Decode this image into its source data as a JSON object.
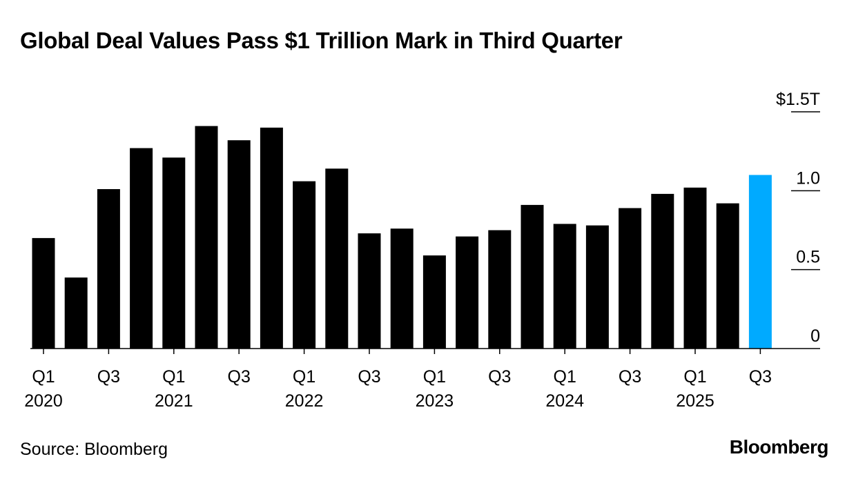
{
  "title": "Global Deal Values Pass $1 Trillion Mark in Third Quarter",
  "source": "Source: Bloomberg",
  "brand": "Bloomberg",
  "colors": {
    "bar": "#000000",
    "highlight": "#00aaff",
    "axis": "#000000"
  },
  "chart_data": {
    "type": "bar",
    "title": "Global Deal Values Pass $1 Trillion Mark in Third Quarter",
    "xlabel": "",
    "ylabel": "",
    "ylim": [
      0,
      1.5
    ],
    "y_ticks": [
      {
        "value": 0,
        "label": "0"
      },
      {
        "value": 0.5,
        "label": "0.5"
      },
      {
        "value": 1.0,
        "label": "1.0"
      },
      {
        "value": 1.5,
        "label": "$1.5T"
      }
    ],
    "categories": [
      "Q1 2020",
      "Q2 2020",
      "Q3 2020",
      "Q4 2020",
      "Q1 2021",
      "Q2 2021",
      "Q3 2021",
      "Q4 2021",
      "Q1 2022",
      "Q2 2022",
      "Q3 2022",
      "Q4 2022",
      "Q1 2023",
      "Q2 2023",
      "Q3 2023",
      "Q4 2023",
      "Q1 2024",
      "Q2 2024",
      "Q3 2024",
      "Q4 2024",
      "Q1 2025",
      "Q2 2025",
      "Q3 2025"
    ],
    "values": [
      0.7,
      0.45,
      1.01,
      1.27,
      1.21,
      1.41,
      1.32,
      1.4,
      1.06,
      1.14,
      0.73,
      0.76,
      0.59,
      0.71,
      0.75,
      0.91,
      0.79,
      0.78,
      0.89,
      0.98,
      1.02,
      0.92,
      1.1
    ],
    "highlight_index": 22,
    "x_tick_labels": [
      {
        "index": 0,
        "quarter": "Q1",
        "year": "2020"
      },
      {
        "index": 2,
        "quarter": "Q3",
        "year": ""
      },
      {
        "index": 4,
        "quarter": "Q1",
        "year": "2021"
      },
      {
        "index": 6,
        "quarter": "Q3",
        "year": ""
      },
      {
        "index": 8,
        "quarter": "Q1",
        "year": "2022"
      },
      {
        "index": 10,
        "quarter": "Q3",
        "year": ""
      },
      {
        "index": 12,
        "quarter": "Q1",
        "year": "2023"
      },
      {
        "index": 14,
        "quarter": "Q3",
        "year": ""
      },
      {
        "index": 16,
        "quarter": "Q1",
        "year": "2024"
      },
      {
        "index": 18,
        "quarter": "Q3",
        "year": ""
      },
      {
        "index": 20,
        "quarter": "Q1",
        "year": "2025"
      },
      {
        "index": 22,
        "quarter": "Q3",
        "year": ""
      }
    ],
    "grid": false,
    "legend": "none"
  }
}
